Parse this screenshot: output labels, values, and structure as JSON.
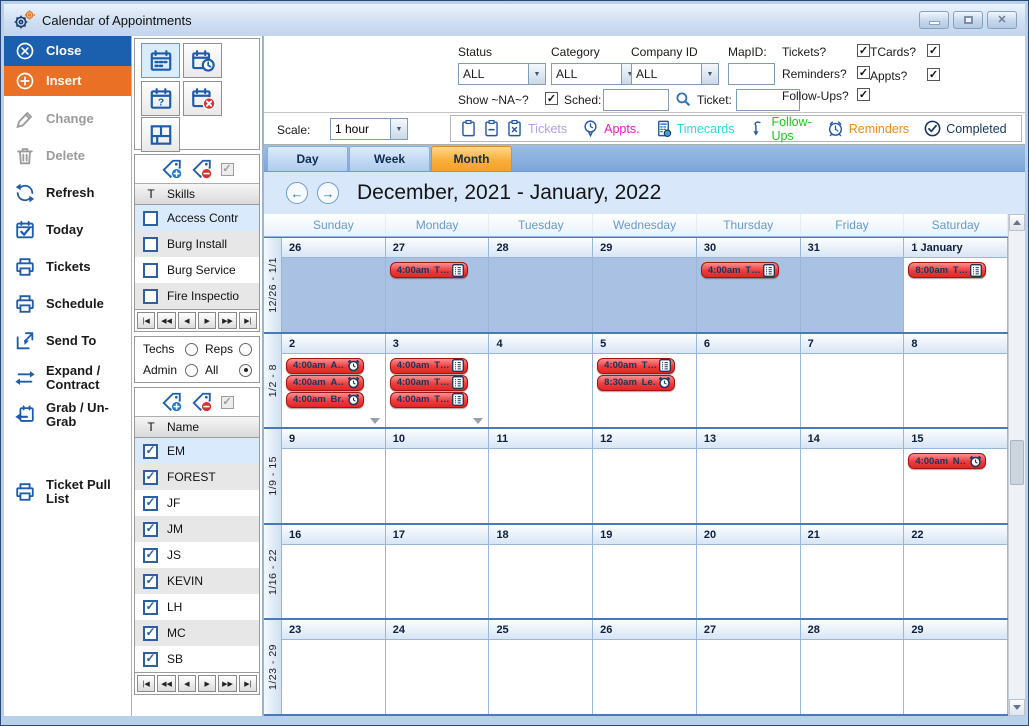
{
  "window": {
    "title": "Calendar of Appointments"
  },
  "titlebar_controls": [
    {
      "name": "minimize"
    },
    {
      "name": "maximize"
    },
    {
      "name": "close"
    }
  ],
  "colors": {
    "accent_blue": "#1b60ae",
    "accent_orange": "#e97025",
    "event_red": "#ee3c3c",
    "outside_month": "#a9c2e3",
    "month_tab_orange": "#f9ab38"
  },
  "sidebar": {
    "items": [
      {
        "label": "Close",
        "icon": "close-circle-icon",
        "style": "primary-blue"
      },
      {
        "label": "Insert",
        "icon": "plus-circle-icon",
        "style": "primary-orange"
      },
      {
        "label": "Change",
        "icon": "pencil-icon",
        "disabled": true
      },
      {
        "label": "Delete",
        "icon": "trash-icon",
        "disabled": true
      },
      {
        "label": "Refresh",
        "icon": "refresh-icon"
      },
      {
        "label": "Today",
        "icon": "calendar-check-icon"
      },
      {
        "label": "Tickets",
        "icon": "printer-icon"
      },
      {
        "label": "Schedule",
        "icon": "printer-icon"
      },
      {
        "label": "Send To",
        "icon": "send-to-icon"
      },
      {
        "label": "Expand / Contract",
        "icon": "expand-icon"
      },
      {
        "label": "Grab / Un-Grab",
        "icon": "grab-icon"
      },
      {
        "label": "Ticket Pull List",
        "icon": "printer-icon",
        "gap_before": true
      }
    ]
  },
  "toolbar": {
    "buttons": [
      {
        "name": "month-view-button",
        "icon": "calendar-grid-icon",
        "active": true
      },
      {
        "name": "appointment-time-button",
        "icon": "calendar-clock-icon"
      },
      {
        "name": "calendar-query-button",
        "icon": "calendar-question-icon"
      },
      {
        "name": "calendar-delete-button",
        "icon": "calendar-x-icon"
      },
      {
        "name": "layout-button",
        "icon": "floorplan-icon"
      }
    ]
  },
  "skills_panel": {
    "col_t": "T",
    "col_name": "Skills",
    "rows": [
      {
        "label": "Access Contr",
        "checked": false,
        "selected": true
      },
      {
        "label": "Burg Install",
        "checked": false
      },
      {
        "label": "Burg Service",
        "checked": false
      },
      {
        "label": "Fire Inspectio",
        "checked": false
      }
    ],
    "pager": [
      "|◀",
      "◀◀",
      "◀",
      "▶",
      "▶▶",
      "▶|"
    ]
  },
  "filter_radios": {
    "options": [
      {
        "label": "Techs",
        "selected": false
      },
      {
        "label": "Reps",
        "selected": false
      },
      {
        "label": "Admin",
        "selected": false
      },
      {
        "label": "All",
        "selected": true
      }
    ]
  },
  "names_panel": {
    "col_t": "T",
    "col_name": "Name",
    "rows": [
      {
        "label": "EM",
        "checked": true,
        "selected": true
      },
      {
        "label": "FOREST",
        "checked": true
      },
      {
        "label": "JF",
        "checked": true
      },
      {
        "label": "JM",
        "checked": true
      },
      {
        "label": "JS",
        "checked": true
      },
      {
        "label": "KEVIN",
        "checked": true
      },
      {
        "label": "LH",
        "checked": true
      },
      {
        "label": "MC",
        "checked": true
      },
      {
        "label": "SB",
        "checked": true
      }
    ],
    "pager": [
      "|◀",
      "◀◀",
      "◀",
      "▶",
      "▶▶",
      "▶|"
    ]
  },
  "filters": {
    "status_label": "Status",
    "status_value": "ALL",
    "category_label": "Category",
    "category_value": "ALL",
    "company_label": "Company ID",
    "company_value": "ALL",
    "mapid_label": "MapID:",
    "mapid_value": "",
    "show_na_label": "Show ~NA~?",
    "show_na_checked": true,
    "sched_label": "Sched:",
    "sched_value": "",
    "ticket_label": "Ticket:",
    "ticket_value": "",
    "toggles": [
      {
        "label": "Tickets?",
        "checked": true
      },
      {
        "label": "TCards?",
        "checked": true
      },
      {
        "label": "Reminders?",
        "checked": true
      },
      {
        "label": "Appts?",
        "checked": true
      },
      {
        "label": "Follow-Ups?",
        "checked": true
      }
    ]
  },
  "scale": {
    "label": "Scale:",
    "value": "1 hour"
  },
  "legend": {
    "items": [
      {
        "icons": [
          "clipboard-plain-icon",
          "clipboard-minus-icon",
          "clipboard-x-icon"
        ],
        "label": "Tickets",
        "color": "#b2a0e8"
      },
      {
        "icons": [
          "pin-clock-icon"
        ],
        "label": "Appts.",
        "color": "#e61ac6"
      },
      {
        "icons": [
          "timecard-icon"
        ],
        "label": "Timecards",
        "color": "#33d6e6"
      },
      {
        "icons": [
          "follow-up-arrow-icon"
        ],
        "label": "Follow-Ups",
        "color": "#1ec41e"
      },
      {
        "icons": [
          "alarm-icon"
        ],
        "label": "Reminders",
        "color": "#f08a18"
      },
      {
        "icons": [
          "completed-check-icon"
        ],
        "label": "Completed",
        "color": "#16365c"
      }
    ]
  },
  "view_tabs": [
    {
      "label": "Day"
    },
    {
      "label": "Week"
    },
    {
      "label": "Month",
      "active": true
    }
  ],
  "period_title": "December, 2021 - January, 2022",
  "calendar": {
    "day_headers": [
      "Sunday",
      "Monday",
      "Tuesday",
      "Wednesday",
      "Thursday",
      "Friday",
      "Saturday"
    ],
    "weeks": [
      {
        "label": "12/26 - 1/1",
        "days": [
          {
            "date": "26",
            "outside": true,
            "events": []
          },
          {
            "date": "27",
            "outside": true,
            "events": [
              {
                "time": "4:00am",
                "title": "T…",
                "icon": "ticket"
              }
            ]
          },
          {
            "date": "28",
            "outside": true,
            "events": []
          },
          {
            "date": "29",
            "outside": true,
            "events": []
          },
          {
            "date": "30",
            "outside": true,
            "events": [
              {
                "time": "4:00am",
                "title": "T…",
                "icon": "ticket"
              }
            ]
          },
          {
            "date": "31",
            "outside": true,
            "events": []
          },
          {
            "date": "1 January",
            "outside": false,
            "events": [
              {
                "time": "8:00am",
                "title": "T…",
                "icon": "ticket"
              }
            ]
          }
        ]
      },
      {
        "label": "1/2 - 8",
        "days": [
          {
            "date": "2",
            "events": [
              {
                "time": "4:00am",
                "title": "A…",
                "icon": "alarm"
              },
              {
                "time": "4:00am",
                "title": "A…",
                "icon": "alarm"
              },
              {
                "time": "4:00am",
                "title": "Br…",
                "icon": "alarm"
              }
            ],
            "more": true
          },
          {
            "date": "3",
            "events": [
              {
                "time": "4:00am",
                "title": "T…",
                "icon": "ticket"
              },
              {
                "time": "4:00am",
                "title": "T…",
                "icon": "ticket"
              },
              {
                "time": "4:00am",
                "title": "T…",
                "icon": "ticket"
              }
            ],
            "more": true
          },
          {
            "date": "4",
            "events": []
          },
          {
            "date": "5",
            "events": [
              {
                "time": "4:00am",
                "title": "T…",
                "icon": "ticket"
              },
              {
                "time": "8:30am",
                "title": "Le…",
                "icon": "alarm"
              }
            ]
          },
          {
            "date": "6",
            "events": []
          },
          {
            "date": "7",
            "events": []
          },
          {
            "date": "8",
            "events": []
          }
        ]
      },
      {
        "label": "1/9 - 15",
        "days": [
          {
            "date": "9",
            "events": []
          },
          {
            "date": "10",
            "events": []
          },
          {
            "date": "11",
            "events": []
          },
          {
            "date": "12",
            "events": []
          },
          {
            "date": "13",
            "events": []
          },
          {
            "date": "14",
            "events": []
          },
          {
            "date": "15",
            "events": [
              {
                "time": "4:00am",
                "title": "N…",
                "icon": "alarm"
              }
            ]
          }
        ]
      },
      {
        "label": "1/16 - 22",
        "days": [
          {
            "date": "16",
            "events": []
          },
          {
            "date": "17",
            "events": []
          },
          {
            "date": "18",
            "events": []
          },
          {
            "date": "19",
            "events": []
          },
          {
            "date": "20",
            "events": []
          },
          {
            "date": "21",
            "events": []
          },
          {
            "date": "22",
            "events": []
          }
        ]
      },
      {
        "label": "1/23 - 29",
        "days": [
          {
            "date": "23",
            "events": []
          },
          {
            "date": "24",
            "events": []
          },
          {
            "date": "25",
            "events": []
          },
          {
            "date": "26",
            "events": []
          },
          {
            "date": "27",
            "events": []
          },
          {
            "date": "28",
            "events": []
          },
          {
            "date": "29",
            "events": []
          }
        ]
      }
    ]
  }
}
